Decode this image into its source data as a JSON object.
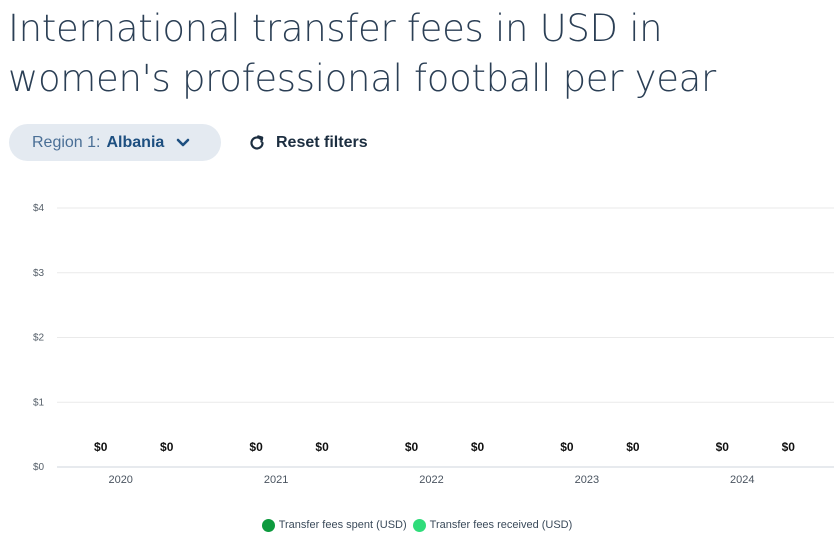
{
  "page": {
    "title": "International transfer fees in USD in women's professional football per year"
  },
  "filters": {
    "region_label": "Region 1:",
    "region_value": "Albania",
    "reset_label": "Reset filters"
  },
  "colors": {
    "spent": "#0d9a3e",
    "received": "#2fdc7a",
    "grid": "#eaeaea",
    "axis": "#cfd6dd"
  },
  "chart_data": {
    "type": "bar",
    "categories": [
      "2020",
      "2021",
      "2022",
      "2023",
      "2024"
    ],
    "series": [
      {
        "name": "Transfer fees spent (USD)",
        "values": [
          0,
          0,
          0,
          0,
          0
        ],
        "labels": [
          "$0",
          "$0",
          "$0",
          "$0",
          "$0"
        ]
      },
      {
        "name": "Transfer fees received (USD)",
        "values": [
          0,
          0,
          0,
          0,
          0
        ],
        "labels": [
          "$0",
          "$0",
          "$0",
          "$0",
          "$0"
        ]
      }
    ],
    "yticks": [
      "$0",
      "$1",
      "$2",
      "$3",
      "$4"
    ],
    "ylim": [
      0,
      4
    ],
    "grid": true,
    "legend_position": "bottom"
  }
}
